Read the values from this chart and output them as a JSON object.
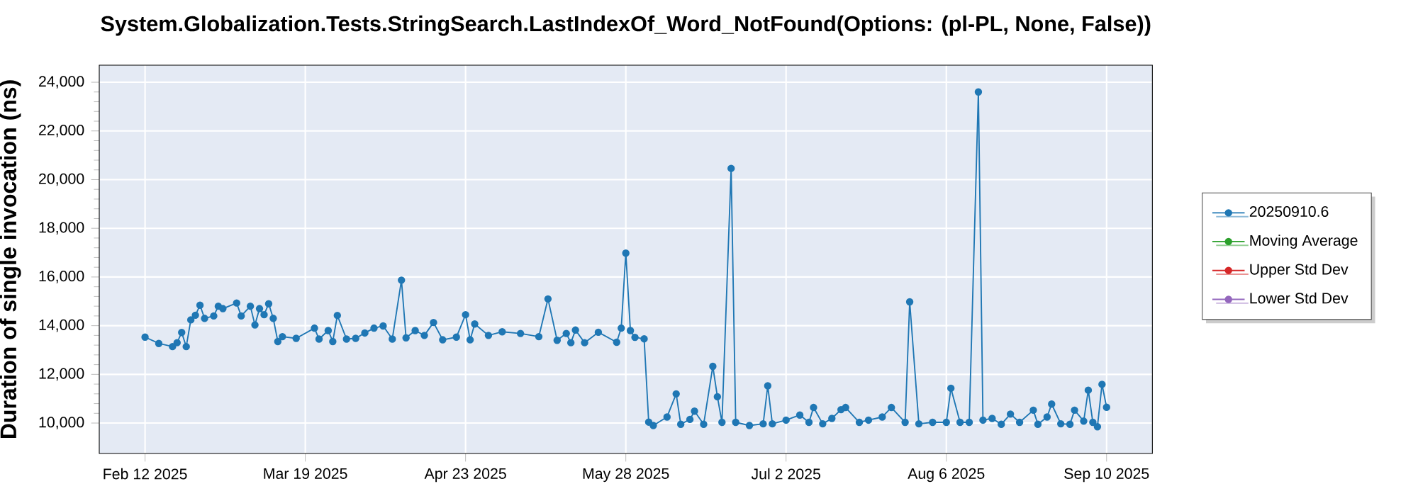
{
  "chart_data": {
    "type": "line",
    "title": "System.Globalization.Tests.StringSearch.LastIndexOf_Word_NotFound(Options: (pl-PL, None, False))",
    "ylabel": "Duration of single invocation (ns)",
    "x": [
      "2025-02-12",
      "2025-02-15",
      "2025-02-18",
      "2025-02-19",
      "2025-02-20",
      "2025-02-21",
      "2025-02-22",
      "2025-02-23",
      "2025-02-24",
      "2025-02-25",
      "2025-02-27",
      "2025-02-28",
      "2025-03-01",
      "2025-03-04",
      "2025-03-05",
      "2025-03-07",
      "2025-03-08",
      "2025-03-09",
      "2025-03-10",
      "2025-03-11",
      "2025-03-12",
      "2025-03-13",
      "2025-03-14",
      "2025-03-17",
      "2025-03-21",
      "2025-03-22",
      "2025-03-24",
      "2025-03-25",
      "2025-03-26",
      "2025-03-28",
      "2025-03-30",
      "2025-04-01",
      "2025-04-03",
      "2025-04-05",
      "2025-04-07",
      "2025-04-09",
      "2025-04-10",
      "2025-04-12",
      "2025-04-14",
      "2025-04-16",
      "2025-04-18",
      "2025-04-21",
      "2025-04-23",
      "2025-04-24",
      "2025-04-25",
      "2025-04-28",
      "2025-05-01",
      "2025-05-05",
      "2025-05-09",
      "2025-05-11",
      "2025-05-13",
      "2025-05-15",
      "2025-05-16",
      "2025-05-17",
      "2025-05-19",
      "2025-05-22",
      "2025-05-26",
      "2025-05-27",
      "2025-05-28",
      "2025-05-29",
      "2025-05-30",
      "2025-06-01",
      "2025-06-02",
      "2025-06-03",
      "2025-06-06",
      "2025-06-08",
      "2025-06-09",
      "2025-06-11",
      "2025-06-12",
      "2025-06-14",
      "2025-06-16",
      "2025-06-17",
      "2025-06-18",
      "2025-06-20",
      "2025-06-21",
      "2025-06-24",
      "2025-06-27",
      "2025-06-28",
      "2025-06-29",
      "2025-07-02",
      "2025-07-05",
      "2025-07-07",
      "2025-07-08",
      "2025-07-10",
      "2025-07-12",
      "2025-07-14",
      "2025-07-15",
      "2025-07-18",
      "2025-07-20",
      "2025-07-23",
      "2025-07-25",
      "2025-07-28",
      "2025-07-29",
      "2025-07-31",
      "2025-08-03",
      "2025-08-06",
      "2025-08-07",
      "2025-08-09",
      "2025-08-11",
      "2025-08-13",
      "2025-08-14",
      "2025-08-16",
      "2025-08-18",
      "2025-08-20",
      "2025-08-22",
      "2025-08-25",
      "2025-08-26",
      "2025-08-28",
      "2025-08-29",
      "2025-08-31",
      "2025-09-02",
      "2025-09-03",
      "2025-09-05",
      "2025-09-06",
      "2025-09-07",
      "2025-09-08",
      "2025-09-09",
      "2025-09-10"
    ],
    "series": [
      {
        "name": "20250910.6",
        "color": "#1f77b4",
        "values": [
          13530,
          13270,
          13140,
          13300,
          13720,
          13140,
          14240,
          14430,
          14840,
          14300,
          14400,
          14800,
          14700,
          14930,
          14400,
          14800,
          14030,
          14700,
          14450,
          14900,
          14300,
          13350,
          13550,
          13480,
          13900,
          13450,
          13800,
          13350,
          14420,
          13450,
          13480,
          13700,
          13900,
          13990,
          13450,
          15870,
          13500,
          13800,
          13600,
          14130,
          13420,
          13530,
          14450,
          13420,
          14070,
          13600,
          13750,
          13680,
          13550,
          15100,
          13400,
          13680,
          13300,
          13820,
          13300,
          13730,
          13320,
          13900,
          16980,
          13800,
          13520,
          13460,
          10040,
          9900,
          10250,
          11200,
          9950,
          10150,
          10490,
          9950,
          12330,
          11080,
          10030,
          20460,
          10030,
          9900,
          9970,
          11530,
          9970,
          10120,
          10330,
          10030,
          10640,
          9970,
          10190,
          10550,
          10640,
          10030,
          10120,
          10250,
          10640,
          10030,
          14980,
          9970,
          10030,
          10030,
          11430,
          10030,
          10030,
          23600,
          10120,
          10190,
          9950,
          10370,
          10030,
          10530,
          9950,
          10250,
          10780,
          9970,
          9950,
          10530,
          10080,
          11350,
          10030,
          9850,
          11590,
          10650
        ]
      },
      {
        "name": "Moving Average",
        "color": "#2ca02c",
        "values": [
          null,
          null,
          null,
          null,
          null,
          null,
          null,
          null,
          null,
          null,
          null,
          null,
          null,
          null,
          null,
          null,
          null,
          null,
          null,
          null,
          null,
          null,
          null,
          null,
          null,
          null,
          null,
          null,
          null,
          null,
          null,
          null,
          null,
          null,
          null,
          null,
          null,
          null,
          null,
          null,
          null,
          null,
          null,
          null,
          null,
          null,
          null,
          null,
          null,
          null,
          null,
          null,
          null,
          null,
          null,
          null,
          null,
          null,
          null,
          null,
          null,
          null,
          null,
          null,
          null,
          null,
          null,
          null,
          null,
          null,
          null,
          null,
          null,
          null,
          null,
          null,
          null,
          null,
          null,
          null,
          null,
          null,
          null,
          null,
          null,
          null,
          null,
          null,
          null,
          null,
          null,
          null,
          null,
          null,
          null,
          null,
          null,
          null,
          null,
          null,
          null,
          null,
          null,
          null,
          null,
          null,
          null,
          null,
          null,
          null,
          null,
          null,
          null,
          null,
          null,
          null,
          null,
          null
        ]
      },
      {
        "name": "Upper Std Dev",
        "color": "#d62728",
        "values": [
          null,
          null,
          null,
          null,
          null,
          null,
          null,
          null,
          null,
          null,
          null,
          null,
          null,
          null,
          null,
          null,
          null,
          null,
          null,
          null,
          null,
          null,
          null,
          null,
          null,
          null,
          null,
          null,
          null,
          null,
          null,
          null,
          null,
          null,
          null,
          null,
          null,
          null,
          null,
          null,
          null,
          null,
          null,
          null,
          null,
          null,
          null,
          null,
          null,
          null,
          null,
          null,
          null,
          null,
          null,
          null,
          null,
          null,
          null,
          null,
          null,
          null,
          null,
          null,
          null,
          null,
          null,
          null,
          null,
          null,
          null,
          null,
          null,
          null,
          null,
          null,
          null,
          null,
          null,
          null,
          null,
          null,
          null,
          null,
          null,
          null,
          null,
          null,
          null,
          null,
          null,
          null,
          null,
          null,
          null,
          null,
          null,
          null,
          null,
          null,
          null,
          null,
          null,
          null,
          null,
          null,
          null,
          null,
          null,
          null,
          null,
          null,
          null,
          null,
          null,
          null,
          null,
          null
        ]
      },
      {
        "name": "Lower Std Dev",
        "color": "#9467bd",
        "values": [
          null,
          null,
          null,
          null,
          null,
          null,
          null,
          null,
          null,
          null,
          null,
          null,
          null,
          null,
          null,
          null,
          null,
          null,
          null,
          null,
          null,
          null,
          null,
          null,
          null,
          null,
          null,
          null,
          null,
          null,
          null,
          null,
          null,
          null,
          null,
          null,
          null,
          null,
          null,
          null,
          null,
          null,
          null,
          null,
          null,
          null,
          null,
          null,
          null,
          null,
          null,
          null,
          null,
          null,
          null,
          null,
          null,
          null,
          null,
          null,
          null,
          null,
          null,
          null,
          null,
          null,
          null,
          null,
          null,
          null,
          null,
          null,
          null,
          null,
          null,
          null,
          null,
          null,
          null,
          null,
          null,
          null,
          null,
          null,
          null,
          null,
          null,
          null,
          null,
          null,
          null,
          null,
          null,
          null,
          null,
          null,
          null,
          null,
          null,
          null,
          null,
          null,
          null,
          null,
          null,
          null,
          null,
          null,
          null,
          null,
          null,
          null,
          null,
          null,
          null,
          null,
          null,
          null
        ]
      }
    ],
    "xlim": [
      "2025-02-02",
      "2025-09-20"
    ],
    "xticks": [
      {
        "value": "2025-02-12",
        "label": "Feb 12 2025"
      },
      {
        "value": "2025-03-19",
        "label": "Mar 19 2025"
      },
      {
        "value": "2025-04-23",
        "label": "Apr 23 2025"
      },
      {
        "value": "2025-05-28",
        "label": "May 28 2025"
      },
      {
        "value": "2025-07-02",
        "label": "Jul 2 2025"
      },
      {
        "value": "2025-08-06",
        "label": "Aug 6 2025"
      },
      {
        "value": "2025-09-10",
        "label": "Sep 10 2025"
      }
    ],
    "ylim": [
      8750,
      24700
    ],
    "yticks": [
      {
        "value": 10000,
        "label": "10,000"
      },
      {
        "value": 12000,
        "label": "12,000"
      },
      {
        "value": 14000,
        "label": "14,000"
      },
      {
        "value": 16000,
        "label": "16,000"
      },
      {
        "value": 18000,
        "label": "18,000"
      },
      {
        "value": 20000,
        "label": "20,000"
      },
      {
        "value": 22000,
        "label": "22,000"
      },
      {
        "value": 24000,
        "label": "24,000"
      }
    ],
    "grid": true,
    "legend": "right",
    "marker": "circle",
    "line_style": "solid"
  }
}
